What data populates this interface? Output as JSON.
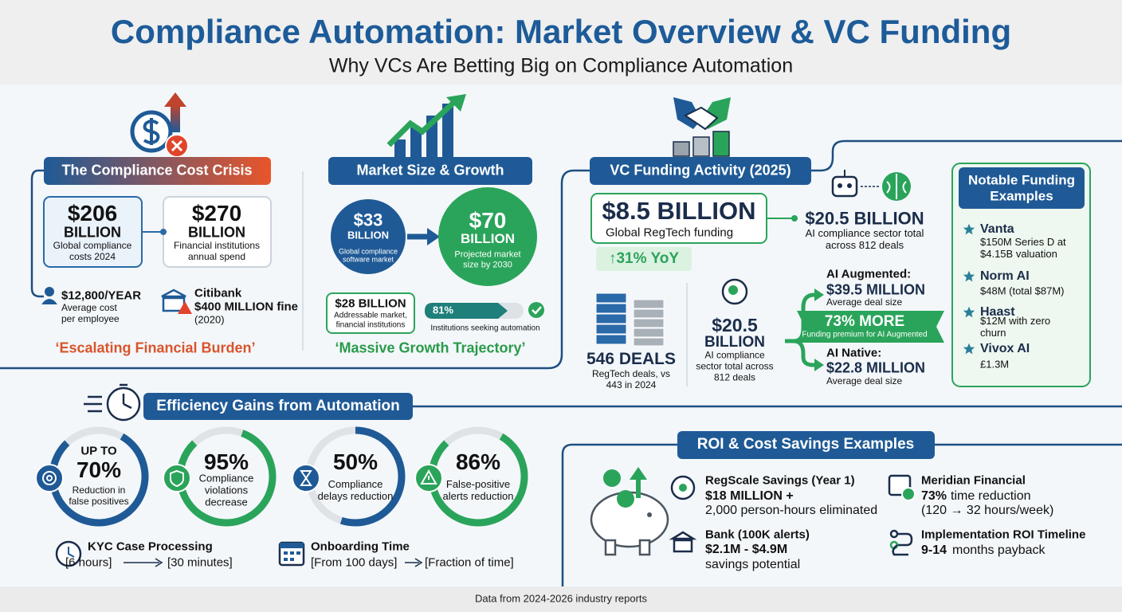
{
  "header": {
    "title": "Compliance Automation: Market Overview & VC Funding",
    "subtitle": "Why VCs Are Betting Big on Compliance Automation"
  },
  "cost_crisis": {
    "heading": "The Compliance Cost Crisis",
    "global_costs": {
      "value": "$206",
      "unit": "BILLION",
      "desc": "Global compliance costs 2024"
    },
    "fi_spend": {
      "value": "$270",
      "unit": "BILLION",
      "desc": "Financial institutions annual spend"
    },
    "per_employee": {
      "value": "$12,800/YEAR",
      "desc": "Average cost per employee"
    },
    "citibank": {
      "name": "Citibank",
      "fine": "$400 MILLION fine",
      "year": "(2020)"
    },
    "tagline": "‘Escalating Financial Burden’"
  },
  "market": {
    "heading": "Market Size & Growth",
    "current": {
      "value": "$33",
      "unit": "BILLION",
      "desc": "Global compliance software market"
    },
    "projected": {
      "value": "$70",
      "unit": "BILLION",
      "desc": "Projected market size by 2030"
    },
    "addressable": {
      "value": "$28 BILLION",
      "desc": "Addressable market, financial institutions"
    },
    "seeking": {
      "percent": "81%",
      "desc": "Institutions seeking automation"
    },
    "tagline": "‘Massive Growth Trajectory’"
  },
  "vc": {
    "heading": "VC Funding Activity (2025)",
    "total": {
      "value": "$8.5 BILLION",
      "desc": "Global RegTech funding"
    },
    "yoy": "↑31% YoY",
    "ai_sector": {
      "value": "$20.5 BILLION",
      "desc": "AI compliance sector total across 812 deals"
    },
    "deals": {
      "value": "546 DEALS",
      "desc": "RegTech deals, vs 443 in 2024"
    },
    "ai_center": {
      "value": "$20.5",
      "unit": "BILLION",
      "desc": "AI compliance sector total across 812 deals"
    },
    "augmented": {
      "label": "AI Augmented:",
      "value": "$39.5 MILLION",
      "desc": "Average deal size"
    },
    "premium": {
      "value": "73% MORE",
      "desc": "Funding premium for AI Augmented"
    },
    "native": {
      "label": "AI Native:",
      "value": "$22.8 MILLION",
      "desc": "Average deal size"
    }
  },
  "notable": {
    "heading": "Notable Funding Examples",
    "items": [
      {
        "name": "Vanta",
        "detail": "$150M Series D at $4.15B valuation"
      },
      {
        "name": "Norm AI",
        "detail": "$48M (total $87M)"
      },
      {
        "name": "Haast",
        "detail": "$12M with zero churn"
      },
      {
        "name": "Vivox AI",
        "detail": "£1.3M"
      }
    ]
  },
  "efficiency": {
    "heading": "Efficiency Gains from Automation",
    "gauges": [
      {
        "prefix": "UP TO",
        "value": "70%",
        "desc": "Reduction in false positives"
      },
      {
        "value": "95%",
        "desc": "Compliance violations decrease"
      },
      {
        "value": "50%",
        "desc": "Compliance delays reduction"
      },
      {
        "value": "86%",
        "desc": "False-positive alerts reduction"
      }
    ],
    "kyc": {
      "title": "KYC Case Processing",
      "from": "[6 hours]",
      "to": "[30 minutes]"
    },
    "onboarding": {
      "title": "Onboarding Time",
      "from": "[From 100 days]",
      "to": "[Fraction of time]"
    }
  },
  "roi": {
    "heading": "ROI & Cost Savings Examples",
    "regscale": {
      "title": "RegScale Savings (Year 1)",
      "line1": "$18 MILLION +",
      "line2": "2,000 person-hours eliminated"
    },
    "bank": {
      "title": "Bank (100K alerts)",
      "line1": "$2.1M - $4.9M",
      "line2": "savings potential"
    },
    "meridian": {
      "title": "Meridian Financial",
      "line1_bold": "73%",
      "line1_rest": "time reduction",
      "line2": "(120 → 32 hours/week)"
    },
    "timeline": {
      "title": "Implementation ROI Timeline",
      "line1_bold": "9-14",
      "line1_rest": "months payback"
    }
  },
  "footer": {
    "note": "Data from 2024-2026 industry reports"
  }
}
